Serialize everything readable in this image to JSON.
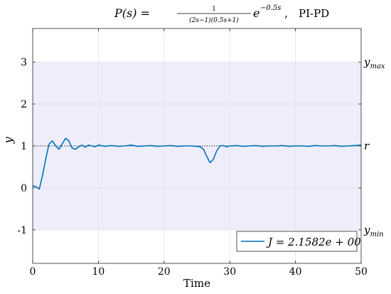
{
  "title": {
    "lhs": "P(s) =",
    "numerator": "1",
    "denominator": "(2s−1)(0.5s+1)",
    "exp_base": "e",
    "exp_power": "−0.5s",
    "sep": ",",
    "controller": "PI-PD"
  },
  "right_labels": {
    "ymax_main": "y",
    "ymax_sub": "max",
    "r": "r",
    "ymin_main": "y",
    "ymin_sub": "min"
  },
  "legend": {
    "text": "J = 2.1582e + 00"
  },
  "colors": {
    "line": "#0072BD",
    "band": "#EEEEFA",
    "grid": "#E3E3E3",
    "axis": "#262626",
    "reference": "#000000"
  },
  "chart_data": {
    "type": "line",
    "xlabel": "Time",
    "ylabel": "y",
    "xlim": [
      0,
      50
    ],
    "ylim": [
      -1.8,
      3.8
    ],
    "xticks": [
      0,
      10,
      20,
      30,
      40,
      50
    ],
    "yticks": [
      -1,
      0,
      1,
      2,
      3
    ],
    "xtick_labels": [
      "0",
      "10",
      "20",
      "30",
      "40",
      "50"
    ],
    "ytick_labels": [
      "-1",
      "0",
      "1",
      "2",
      "3"
    ],
    "grid": true,
    "bounds": {
      "ymax": 3,
      "ymin": -1
    },
    "reference": 1,
    "legend_position": "bottom-right",
    "series": [
      {
        "name": "J = 2.1582e + 00",
        "x": [
          0,
          0.5,
          1,
          1.5,
          2,
          2.5,
          3,
          3.5,
          4,
          4.5,
          5,
          5.5,
          6,
          6.5,
          7,
          7.5,
          8,
          8.5,
          9,
          9.5,
          10,
          11,
          12,
          13,
          14,
          15,
          16,
          17,
          18,
          19,
          20,
          21,
          22,
          23,
          24,
          25,
          25.5,
          26,
          26.5,
          27,
          27.5,
          28,
          28.5,
          29,
          29.5,
          30,
          31,
          32,
          33,
          34,
          35,
          36,
          37,
          38,
          39,
          40,
          41,
          42,
          43,
          44,
          45,
          46,
          47,
          48,
          49,
          50
        ],
        "values": [
          0.05,
          0.03,
          -0.03,
          0.3,
          0.7,
          1.05,
          1.12,
          1.0,
          0.92,
          1.05,
          1.18,
          1.12,
          0.95,
          0.92,
          0.98,
          1.02,
          0.97,
          1.02,
          1.0,
          0.98,
          1.02,
          0.99,
          1.01,
          0.99,
          1.0,
          1.02,
          0.99,
          1.0,
          1.01,
          0.99,
          1.0,
          1.01,
          0.99,
          1.0,
          1.0,
          0.99,
          0.98,
          0.92,
          0.75,
          0.6,
          0.68,
          0.88,
          1.0,
          1.01,
          0.98,
          1.0,
          1.01,
          0.99,
          1.0,
          1.01,
          0.99,
          1.0,
          1.0,
          1.01,
          0.99,
          1.0,
          1.0,
          0.99,
          1.01,
          1.0,
          1.0,
          1.01,
          0.99,
          1.0,
          1.01,
          1.02
        ]
      }
    ]
  }
}
